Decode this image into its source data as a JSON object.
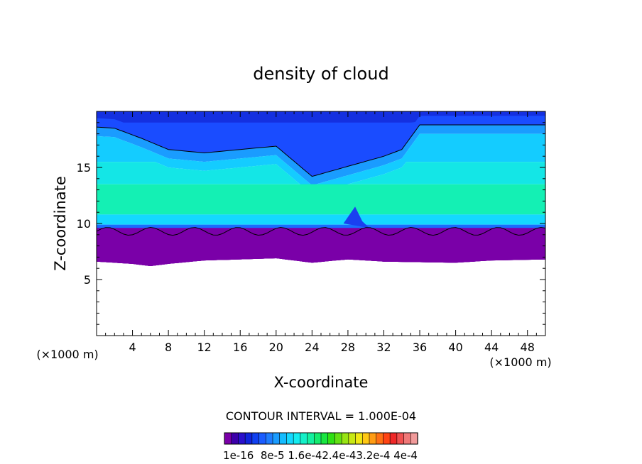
{
  "chart_data": {
    "type": "heatmap",
    "title": "density of cloud",
    "xlabel": "X-coordinate",
    "ylabel": "Z-coordinate",
    "x_unit_left": "(×1000 m)",
    "x_unit_right": "(×1000 m)",
    "xlim": [
      0,
      50
    ],
    "ylim": [
      0,
      20
    ],
    "xticks": [
      4,
      8,
      12,
      16,
      20,
      24,
      28,
      32,
      36,
      40,
      44,
      48
    ],
    "yticks": [
      5,
      10,
      15
    ],
    "contour_note": "CONTOUR INTERVAL = 1.000E-04",
    "colorbar": {
      "labels": [
        "1e-16",
        "8e-5",
        "1.6e-4",
        "2.4e-4",
        "3.2e-4",
        "4e-4"
      ],
      "label_strip": "1e-16  8e-5 1.6e-42.4e-43.2e-4 4e-4",
      "colors": [
        "#7a00a8",
        "#3c00aa",
        "#2a10cc",
        "#1024dc",
        "#1040f0",
        "#1a5cff",
        "#1e7cff",
        "#1a9cff",
        "#14bcff",
        "#14d8ff",
        "#14ecf0",
        "#14f0c8",
        "#14f0a0",
        "#14ec70",
        "#18e640",
        "#30e014",
        "#64e014",
        "#98e414",
        "#c8e814",
        "#f0e814",
        "#ffc814",
        "#ff9c14",
        "#ff7014",
        "#ff4414",
        "#f02828",
        "#f05050",
        "#f07878",
        "#f09a9a"
      ]
    },
    "cloud_top_km": [
      18.6,
      18.5,
      17.6,
      16.6,
      16.3,
      16.6,
      16.9,
      14.2,
      15.1,
      16.0,
      16.6,
      18.8,
      18.8
    ],
    "cloud_top_x_km": [
      0,
      2,
      5,
      8,
      12,
      16,
      20,
      24,
      28,
      32,
      34,
      36,
      50
    ],
    "cloud_base_km": [
      6.6,
      6.4,
      6.2,
      6.4,
      6.7,
      6.8,
      6.9,
      6.5,
      6.8,
      6.6,
      6.5,
      6.7,
      6.8
    ],
    "cloud_base_x_km": [
      0,
      4,
      6,
      8,
      12,
      16,
      20,
      24,
      28,
      32,
      40,
      44,
      50
    ]
  }
}
